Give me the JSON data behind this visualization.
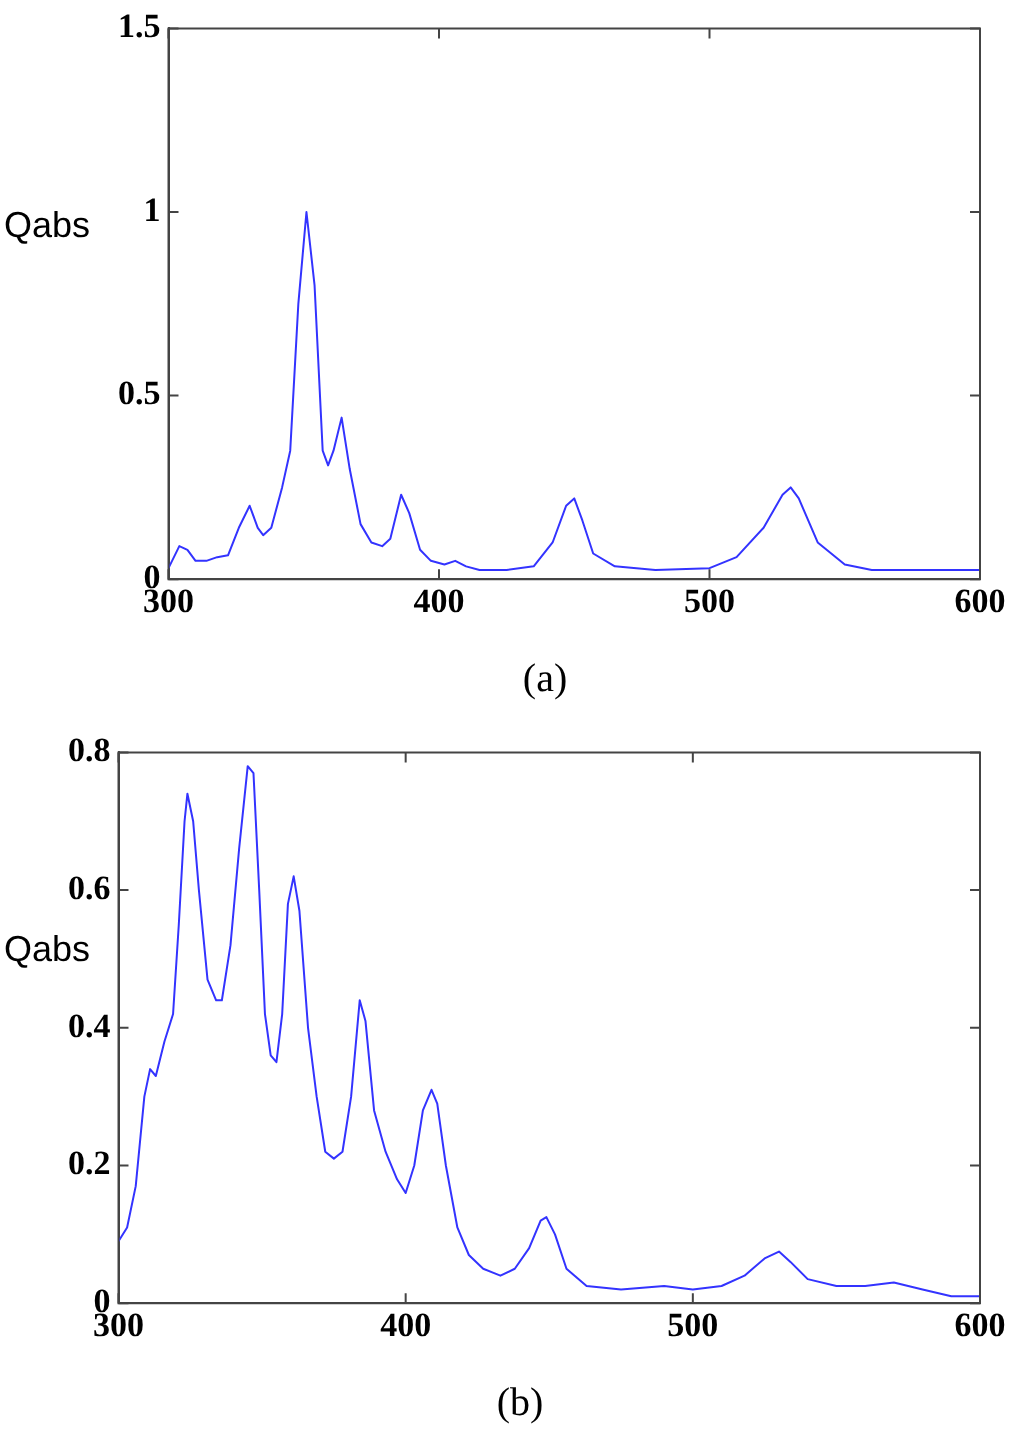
{
  "chart_data": [
    {
      "type": "line",
      "title": "(a)",
      "ylabel": "Qabs",
      "xlim": [
        300,
        600
      ],
      "xticks": [
        300,
        400,
        500,
        600
      ],
      "ylim": [
        0,
        1.5
      ],
      "yticks": [
        0,
        0.5,
        1,
        1.5
      ],
      "grid": false,
      "legend": false,
      "series": [
        {
          "color": "#3333ff",
          "x": [
            300,
            304,
            307,
            310,
            314,
            318,
            322,
            326,
            330,
            333,
            335,
            338,
            342,
            345,
            348,
            351,
            354,
            357,
            359,
            361,
            364,
            367,
            371,
            375,
            379,
            382,
            386,
            389,
            393,
            397,
            402,
            406,
            410,
            415,
            425,
            435,
            442,
            447,
            450,
            453,
            457,
            465,
            480,
            500,
            510,
            520,
            527,
            530,
            533,
            540,
            550,
            560,
            580,
            600
          ],
          "values": [
            0.03,
            0.09,
            0.08,
            0.05,
            0.05,
            0.06,
            0.065,
            0.14,
            0.2,
            0.14,
            0.12,
            0.14,
            0.25,
            0.35,
            0.75,
            1.0,
            0.8,
            0.35,
            0.31,
            0.35,
            0.44,
            0.3,
            0.15,
            0.1,
            0.09,
            0.11,
            0.23,
            0.18,
            0.08,
            0.05,
            0.04,
            0.05,
            0.035,
            0.025,
            0.025,
            0.035,
            0.1,
            0.2,
            0.22,
            0.16,
            0.07,
            0.035,
            0.025,
            0.03,
            0.06,
            0.14,
            0.23,
            0.25,
            0.22,
            0.1,
            0.04,
            0.025,
            0.025,
            0.025
          ]
        }
      ]
    },
    {
      "type": "line",
      "title": "(b)",
      "ylabel": "Qabs",
      "xlim": [
        300,
        600
      ],
      "xticks": [
        300,
        400,
        500,
        600
      ],
      "ylim": [
        0,
        0.8
      ],
      "yticks": [
        0,
        0.2,
        0.4,
        0.6,
        0.8
      ],
      "grid": false,
      "legend": false,
      "series": [
        {
          "color": "#3333ff",
          "x": [
            300,
            303,
            306,
            309,
            311,
            313,
            316,
            319,
            321,
            323,
            324,
            326,
            328,
            331,
            334,
            336,
            339,
            342,
            345,
            347,
            349,
            351,
            353,
            355,
            357,
            359,
            361,
            363,
            366,
            369,
            372,
            375,
            378,
            381,
            384,
            386,
            389,
            393,
            397,
            400,
            403,
            406,
            409,
            411,
            414,
            418,
            422,
            427,
            433,
            438,
            443,
            447,
            449,
            452,
            456,
            463,
            475,
            490,
            500,
            510,
            518,
            525,
            530,
            534,
            540,
            550,
            560,
            570,
            580,
            590,
            600
          ],
          "values": [
            0.09,
            0.11,
            0.17,
            0.3,
            0.34,
            0.33,
            0.38,
            0.42,
            0.55,
            0.7,
            0.74,
            0.7,
            0.6,
            0.47,
            0.44,
            0.44,
            0.52,
            0.66,
            0.78,
            0.77,
            0.6,
            0.42,
            0.36,
            0.35,
            0.42,
            0.58,
            0.62,
            0.57,
            0.4,
            0.3,
            0.22,
            0.21,
            0.22,
            0.3,
            0.44,
            0.41,
            0.28,
            0.22,
            0.18,
            0.16,
            0.2,
            0.28,
            0.31,
            0.29,
            0.2,
            0.11,
            0.07,
            0.05,
            0.04,
            0.05,
            0.08,
            0.12,
            0.125,
            0.1,
            0.05,
            0.025,
            0.02,
            0.025,
            0.02,
            0.025,
            0.04,
            0.065,
            0.075,
            0.06,
            0.035,
            0.025,
            0.025,
            0.03,
            0.02,
            0.01,
            0.01
          ]
        }
      ]
    }
  ]
}
